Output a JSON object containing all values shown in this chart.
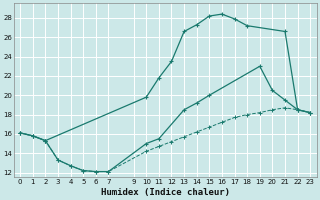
{
  "xlabel": "Humidex (Indice chaleur)",
  "background_color": "#cce8e8",
  "grid_color": "#b0d8d8",
  "line_color": "#1a7a6e",
  "xlim": [
    -0.5,
    23.5
  ],
  "ylim": [
    11.5,
    29.5
  ],
  "xticks": [
    0,
    1,
    2,
    3,
    4,
    5,
    6,
    7,
    9,
    10,
    11,
    12,
    13,
    14,
    15,
    16,
    17,
    18,
    19,
    20,
    21,
    22,
    23
  ],
  "yticks": [
    12,
    14,
    16,
    18,
    20,
    22,
    24,
    26,
    28
  ],
  "curve1_x": [
    0,
    1,
    2,
    10,
    11,
    12,
    13,
    14,
    15,
    16,
    17,
    18,
    21,
    22,
    23
  ],
  "curve1_y": [
    16.1,
    15.8,
    15.3,
    19.8,
    21.8,
    23.5,
    26.6,
    27.3,
    28.2,
    28.4,
    27.9,
    27.2,
    26.6,
    18.5,
    18.2
  ],
  "curve2_x": [
    0,
    1,
    2,
    3,
    4,
    5,
    6,
    7,
    10,
    11,
    13,
    14,
    15,
    19,
    20,
    21,
    22,
    23
  ],
  "curve2_y": [
    16.1,
    15.8,
    15.3,
    13.3,
    12.7,
    12.2,
    12.1,
    12.1,
    15.0,
    15.5,
    18.5,
    19.2,
    20.0,
    23.0,
    20.5,
    19.5,
    18.5,
    18.2
  ],
  "curve3_x": [
    0,
    1,
    2,
    3,
    4,
    5,
    6,
    7,
    10,
    11,
    12,
    13,
    14,
    15,
    16,
    17,
    18,
    19,
    20,
    21,
    22,
    23
  ],
  "curve3_y": [
    16.1,
    15.8,
    15.3,
    13.3,
    12.7,
    12.2,
    12.1,
    12.1,
    14.2,
    14.7,
    15.2,
    15.7,
    16.2,
    16.7,
    17.2,
    17.7,
    18.0,
    18.2,
    18.5,
    18.7,
    18.5,
    18.2
  ]
}
